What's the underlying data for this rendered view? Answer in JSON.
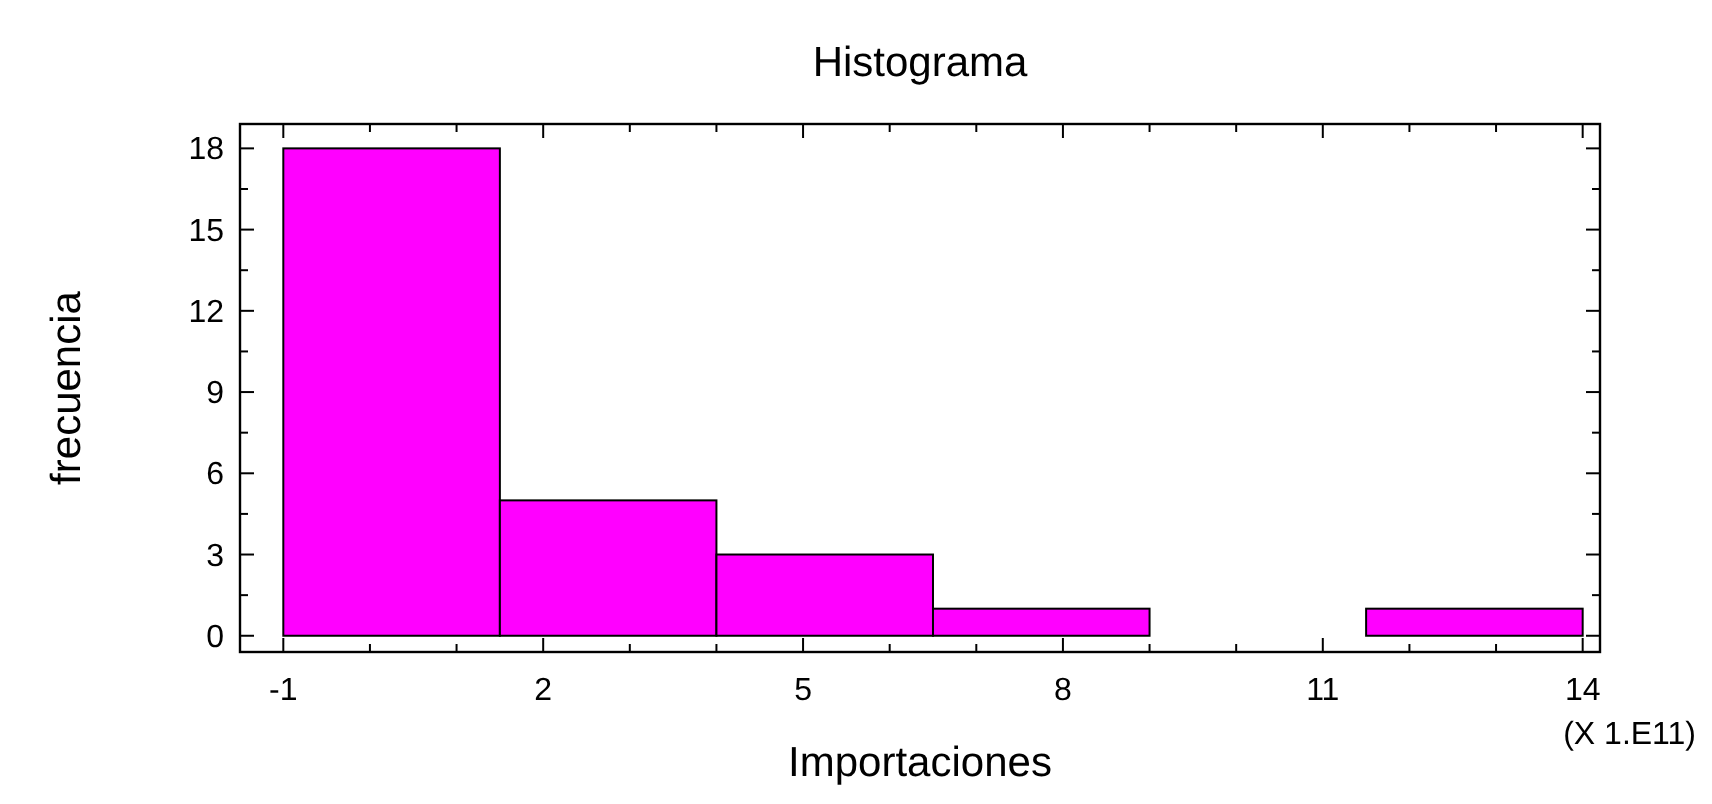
{
  "chart_data": {
    "type": "histogram",
    "title": "Histograma",
    "xlabel": "Importaciones",
    "ylabel": "frecuencia",
    "bins": [
      -1,
      1.5,
      4,
      6.5,
      9,
      11.5,
      14
    ],
    "values": [
      18,
      5,
      3,
      1,
      0,
      1
    ],
    "color": "#ff00ff",
    "xlim": [
      -1.5,
      14.2
    ],
    "ylim": [
      -0.6,
      18.9
    ],
    "xticks": [
      -1,
      {
        "value": 0,
        "label": null
      },
      {
        "value": 1,
        "label": null
      },
      2,
      {
        "value": 3,
        "label": null
      },
      {
        "value": 4,
        "label": null
      },
      5,
      {
        "value": 6,
        "label": null
      },
      {
        "value": 7,
        "label": null
      },
      8,
      {
        "value": 9,
        "label": null
      },
      {
        "value": 10,
        "label": null
      },
      11,
      {
        "value": 12,
        "label": null
      },
      {
        "value": 13,
        "label": null
      },
      14
    ],
    "yticks": [
      0,
      {
        "value": 1.5,
        "label": null
      },
      3,
      {
        "value": 4.5,
        "label": null
      },
      6,
      {
        "value": 7.5,
        "label": null
      },
      9,
      {
        "value": 10.5,
        "label": null
      },
      12,
      {
        "value": 13.5,
        "label": null
      },
      15,
      {
        "value": 16.5,
        "label": null
      },
      18
    ],
    "annotations": [
      "(X 1.E11)"
    ]
  }
}
